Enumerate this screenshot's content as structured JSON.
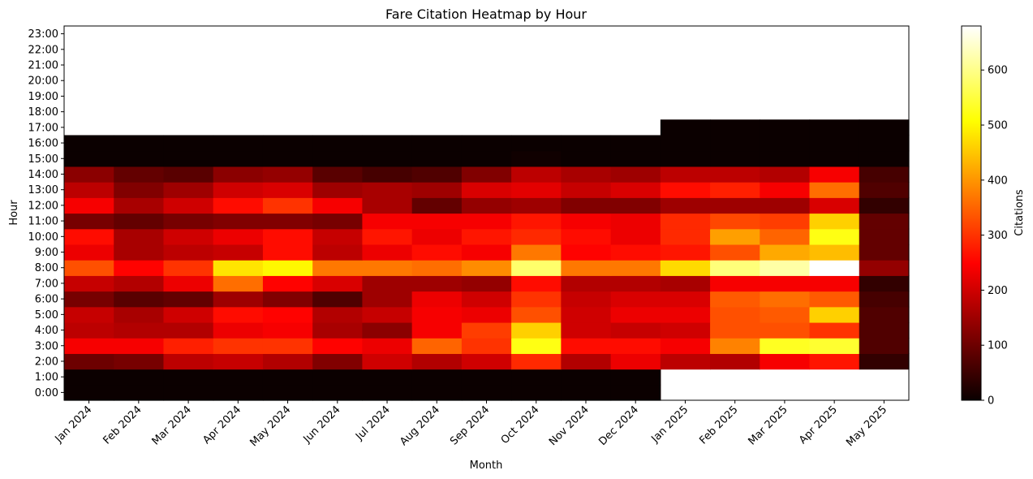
{
  "chart_data": {
    "type": "heatmap",
    "title": "Fare Citation Heatmap by Hour",
    "xlabel": "Month",
    "ylabel": "Hour",
    "colorbar_label": "Citations",
    "colormap": "hot",
    "vmin": 0,
    "vmax": 680,
    "colorbar_ticks": [
      0,
      100,
      200,
      300,
      400,
      500,
      600
    ],
    "colorbar_tick_labels": [
      "0",
      "100",
      "200",
      "300",
      "400",
      "500",
      "600"
    ],
    "x_categories": [
      "Jan 2024",
      "Feb 2024",
      "Mar 2024",
      "Apr 2024",
      "May 2024",
      "Jun 2024",
      "Jul 2024",
      "Aug 2024",
      "Sep 2024",
      "Oct 2024",
      "Nov 2024",
      "Dec 2024",
      "Jan 2025",
      "Feb 2025",
      "Mar 2025",
      "Apr 2025",
      "May 2025"
    ],
    "y_categories": [
      "0:00",
      "1:00",
      "2:00",
      "3:00",
      "4:00",
      "5:00",
      "6:00",
      "7:00",
      "8:00",
      "9:00",
      "10:00",
      "11:00",
      "12:00",
      "13:00",
      "14:00",
      "15:00",
      "16:00",
      "17:00",
      "18:00",
      "19:00",
      "20:00",
      "21:00",
      "22:00",
      "23:00"
    ],
    "values": [
      [
        0,
        0,
        0,
        0,
        0,
        0,
        0,
        0,
        0,
        0,
        0,
        0,
        null,
        null,
        null,
        null,
        null
      ],
      [
        0,
        0,
        0,
        0,
        0,
        0,
        0,
        0,
        0,
        0,
        0,
        0,
        null,
        null,
        null,
        null,
        null
      ],
      [
        100,
        110,
        180,
        190,
        170,
        120,
        200,
        170,
        200,
        290,
        170,
        230,
        180,
        170,
        240,
        270,
        40
      ],
      [
        240,
        240,
        280,
        300,
        300,
        250,
        230,
        350,
        300,
        520,
        260,
        260,
        240,
        380,
        530,
        540,
        70
      ],
      [
        180,
        170,
        170,
        230,
        240,
        160,
        130,
        240,
        310,
        460,
        200,
        190,
        200,
        330,
        330,
        300,
        70
      ],
      [
        190,
        160,
        200,
        260,
        250,
        170,
        190,
        240,
        230,
        330,
        200,
        230,
        230,
        330,
        340,
        460,
        70
      ],
      [
        110,
        80,
        90,
        150,
        120,
        70,
        150,
        230,
        200,
        300,
        190,
        210,
        210,
        340,
        360,
        340,
        60
      ],
      [
        190,
        170,
        230,
        360,
        250,
        210,
        150,
        150,
        140,
        260,
        170,
        170,
        160,
        240,
        240,
        240,
        40
      ],
      [
        330,
        250,
        300,
        480,
        500,
        370,
        370,
        360,
        390,
        580,
        370,
        370,
        470,
        590,
        620,
        680,
        140
      ],
      [
        230,
        160,
        180,
        190,
        260,
        180,
        230,
        260,
        240,
        370,
        250,
        260,
        270,
        330,
        420,
        440,
        90
      ],
      [
        260,
        160,
        200,
        230,
        260,
        190,
        270,
        230,
        270,
        290,
        260,
        230,
        290,
        410,
        350,
        520,
        90
      ],
      [
        110,
        90,
        110,
        120,
        120,
        110,
        240,
        240,
        240,
        270,
        240,
        230,
        290,
        320,
        310,
        460,
        90
      ],
      [
        240,
        160,
        200,
        260,
        300,
        240,
        160,
        90,
        140,
        150,
        120,
        120,
        150,
        150,
        150,
        210,
        40
      ],
      [
        180,
        120,
        150,
        200,
        210,
        150,
        160,
        150,
        210,
        220,
        190,
        210,
        260,
        280,
        240,
        360,
        70
      ],
      [
        130,
        90,
        80,
        130,
        140,
        80,
        60,
        70,
        120,
        180,
        160,
        150,
        180,
        180,
        170,
        240,
        60
      ],
      [
        0,
        0,
        0,
        0,
        0,
        0,
        0,
        0,
        0,
        5,
        0,
        0,
        0,
        0,
        0,
        0,
        0
      ],
      [
        0,
        0,
        0,
        0,
        0,
        0,
        0,
        0,
        0,
        0,
        0,
        0,
        0,
        0,
        0,
        0,
        0
      ],
      [
        null,
        null,
        null,
        null,
        null,
        null,
        null,
        null,
        null,
        null,
        null,
        null,
        0,
        0,
        0,
        0,
        0
      ],
      [
        null,
        null,
        null,
        null,
        null,
        null,
        null,
        null,
        null,
        null,
        null,
        null,
        null,
        null,
        null,
        null,
        null
      ],
      [
        null,
        null,
        null,
        null,
        null,
        null,
        null,
        null,
        null,
        null,
        null,
        null,
        null,
        null,
        null,
        null,
        null
      ],
      [
        null,
        null,
        null,
        null,
        null,
        null,
        null,
        null,
        null,
        null,
        null,
        null,
        null,
        null,
        null,
        null,
        null
      ],
      [
        null,
        null,
        null,
        null,
        null,
        null,
        null,
        null,
        null,
        null,
        null,
        null,
        null,
        null,
        null,
        null,
        null
      ],
      [
        null,
        null,
        null,
        null,
        null,
        null,
        null,
        null,
        null,
        null,
        null,
        null,
        null,
        null,
        null,
        null,
        null
      ],
      [
        null,
        null,
        null,
        null,
        null,
        null,
        null,
        null,
        null,
        null,
        null,
        null,
        null,
        null,
        null,
        null,
        null
      ]
    ]
  }
}
